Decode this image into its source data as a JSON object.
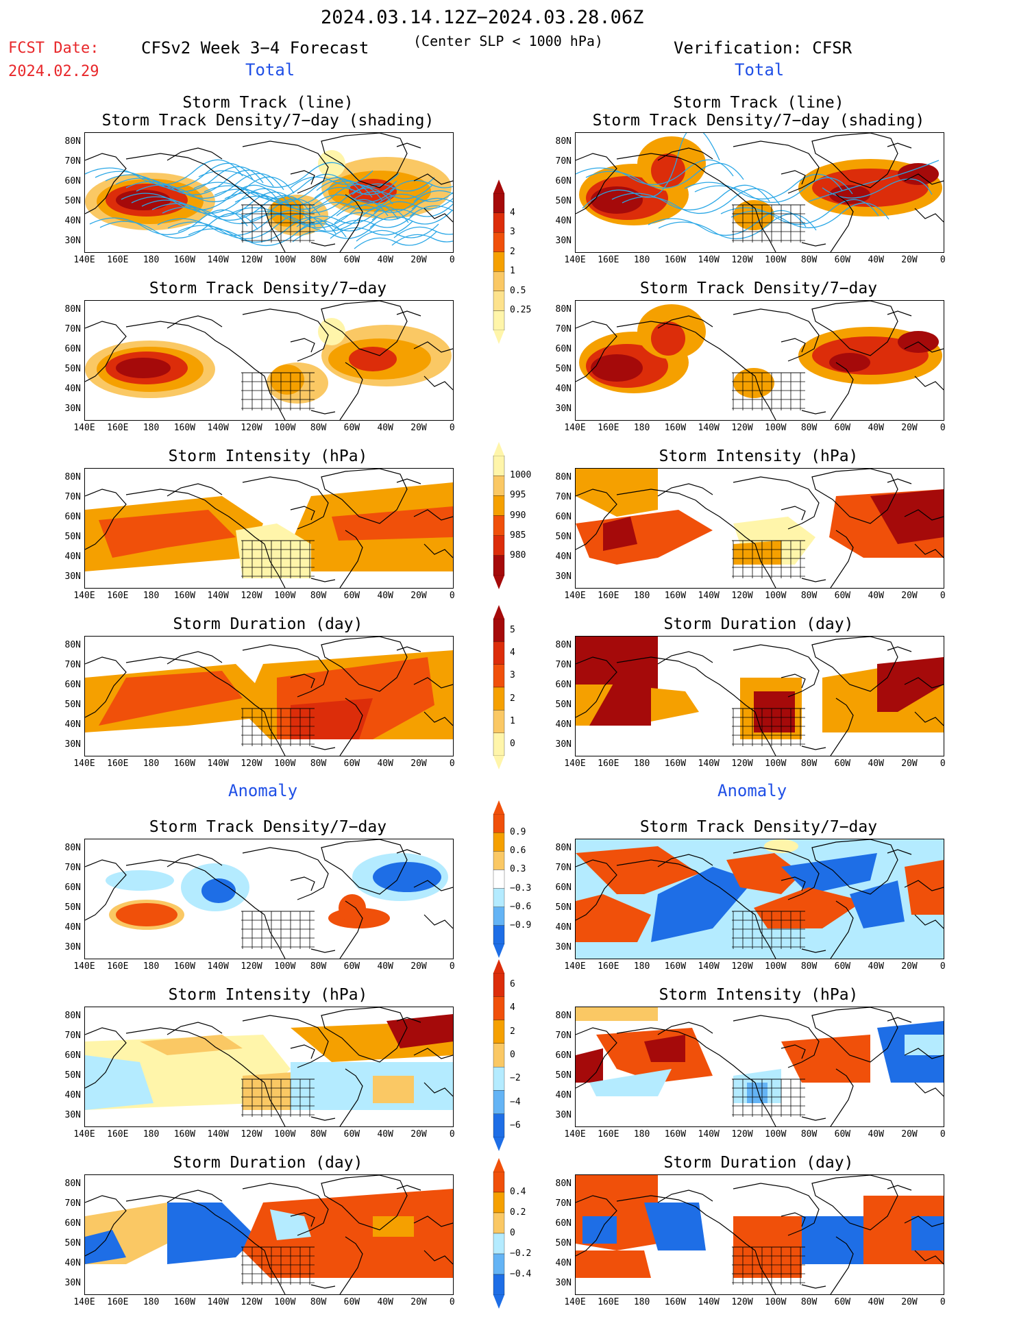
{
  "header": {
    "period": "2024.03.14.12Z−2024.03.28.06Z",
    "fcst_label": "FCST Date:",
    "fcst_date": "2024.02.29",
    "model_title": "CFSv2 Week 3−4 Forecast",
    "criterion": "(Center SLP < 1000 hPa)",
    "verification": "Verification: CFSR",
    "total_left": "Total",
    "total_right": "Total",
    "anomaly_left": "Anomaly",
    "anomaly_right": "Anomaly"
  },
  "axes": {
    "lat_labels": [
      "80N",
      "70N",
      "60N",
      "50N",
      "40N",
      "30N"
    ],
    "lon_labels": [
      "140E",
      "160E",
      "180",
      "160W",
      "140W",
      "120W",
      "100W",
      "80W",
      "60W",
      "40W",
      "20W",
      "0"
    ]
  },
  "panels": {
    "row1_title_line1": "Storm Track (line)",
    "row1_title_line2": "Storm Track Density/7−day (shading)",
    "track_density": "Storm Track Density/7−day",
    "intensity": "Storm Intensity (hPa)",
    "duration": "Storm Duration (day)"
  },
  "colorbars": {
    "density_total": [
      "4",
      "3",
      "2",
      "1",
      "0.5",
      "0.25"
    ],
    "intensity_total": [
      "1000",
      "995",
      "990",
      "985",
      "980"
    ],
    "duration_total": [
      "5",
      "4",
      "3",
      "2",
      "1",
      "0"
    ],
    "density_anom": [
      "0.9",
      "0.6",
      "0.3",
      "−0.3",
      "−0.6",
      "−0.9"
    ],
    "intensity_anom": [
      "6",
      "4",
      "2",
      "0",
      "−2",
      "−4",
      "−6"
    ],
    "duration_anom": [
      "0.4",
      "0.2",
      "0",
      "−0.2",
      "−0.4"
    ]
  },
  "colors": {
    "dark_red": "#a50a0a",
    "red": "#dc2d0a",
    "orange_red": "#f0500a",
    "orange": "#f5a000",
    "light_orange": "#fac864",
    "pale_yellow": "#fff5aa",
    "light_blue": "#b4ebff",
    "mid_blue": "#64b4f5",
    "blue": "#1e6ee6",
    "track_line": "#2aa7e6",
    "fcst_red": "#e8272a",
    "label_blue": "#1f4fe6"
  }
}
